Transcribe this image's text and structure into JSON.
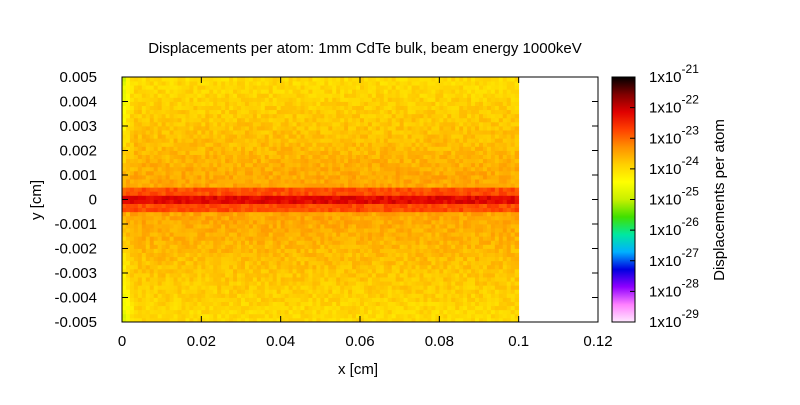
{
  "chart_data": {
    "type": "heatmap",
    "title": "Displacements per atom: 1mm CdTe bulk, beam energy 1000keV",
    "xlabel": "x [cm]",
    "ylabel": "y [cm]",
    "colorbar_label": "Displacements per atom",
    "xlim": [
      0,
      0.12
    ],
    "ylim": [
      -0.005,
      0.005
    ],
    "x_ticks": [
      "0",
      "0.02",
      "0.04",
      "0.06",
      "0.08",
      "0.1",
      "0.12"
    ],
    "y_ticks": [
      "0.005",
      "0.004",
      "0.003",
      "0.002",
      "0.001",
      "0",
      "-0.001",
      "-0.002",
      "-0.003",
      "-0.004",
      "-0.005"
    ],
    "colorbar_scale": "log",
    "colorbar_range": [
      1e-29,
      1e-21
    ],
    "colorbar_ticks": [
      {
        "mantissa": "1x10",
        "exponent": "-21"
      },
      {
        "mantissa": "1x10",
        "exponent": "-22"
      },
      {
        "mantissa": "1x10",
        "exponent": "-23"
      },
      {
        "mantissa": "1x10",
        "exponent": "-24"
      },
      {
        "mantissa": "1x10",
        "exponent": "-25"
      },
      {
        "mantissa": "1x10",
        "exponent": "-26"
      },
      {
        "mantissa": "1x10",
        "exponent": "-27"
      },
      {
        "mantissa": "1x10",
        "exponent": "-28"
      },
      {
        "mantissa": "1x10",
        "exponent": "-29"
      }
    ],
    "colormap": [
      "#ffe8ff",
      "#ff80ff",
      "#9000ff",
      "#0000e0",
      "#00b0ff",
      "#00e8a0",
      "#40e000",
      "#c8f000",
      "#ffff00",
      "#ffd000",
      "#ff9000",
      "#ff4000",
      "#e00000",
      "#800000",
      "#000000"
    ],
    "data_extent_x": [
      0,
      0.1
    ],
    "data_extent_y": [
      -0.005,
      0.005
    ],
    "beam_axis_y": 0,
    "values_log10": {
      "beam_axis_peak": -22.2,
      "near_axis": -22.8,
      "bulk_center": -23.4,
      "bulk_edges": -24.0,
      "entrance_edges": -25.0
    },
    "grid": false,
    "legend": "right"
  }
}
